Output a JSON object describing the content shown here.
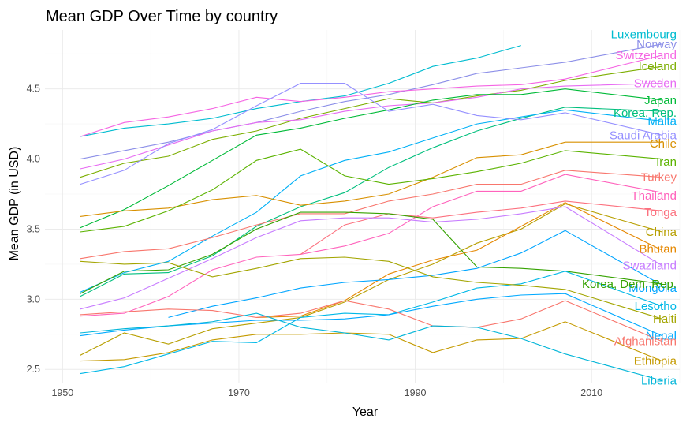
{
  "chart_data": {
    "type": "line",
    "title": "Mean GDP Over Time by country",
    "xlabel": "Year",
    "ylabel": "Mean GDP (in USD)",
    "xlim": [
      1948,
      2020
    ],
    "ylim": [
      2.4,
      4.92
    ],
    "x_ticks": [
      1950,
      1970,
      1990,
      2010
    ],
    "y_ticks": [
      2.5,
      3.0,
      3.5,
      4.0,
      4.5
    ],
    "grid": true,
    "legend": "labels at line ends",
    "x": [
      1952,
      1957,
      1962,
      1967,
      1972,
      1977,
      1982,
      1987,
      1992,
      1997,
      2002,
      2007,
      2018
    ],
    "series": [
      {
        "name": "Luxembourg",
        "color": "#00BCD0",
        "values": [
          4.16,
          4.22,
          4.25,
          4.29,
          4.36,
          4.41,
          4.45,
          4.54,
          4.66,
          4.72,
          4.81,
          null,
          4.89
        ],
        "label_y": 4.89
      },
      {
        "name": "Norway",
        "color": "#8C8FE8",
        "values": [
          4.0,
          4.06,
          4.12,
          4.2,
          4.26,
          4.34,
          4.41,
          4.46,
          4.53,
          4.61,
          4.65,
          4.69,
          4.82
        ],
        "label_y": 4.82
      },
      {
        "name": "Switzerland",
        "color": "#F564E3",
        "values": [
          4.16,
          4.26,
          4.3,
          4.36,
          4.44,
          4.41,
          4.44,
          4.48,
          4.5,
          4.52,
          4.53,
          4.57,
          4.74
        ],
        "label_y": 4.74
      },
      {
        "name": "Iceland",
        "color": "#7CAE00",
        "values": [
          3.87,
          3.97,
          4.02,
          4.14,
          4.2,
          4.29,
          4.36,
          4.43,
          4.4,
          4.45,
          4.49,
          4.56,
          4.66
        ],
        "label_y": 4.66
      },
      {
        "name": "Sweden",
        "color": "#E76BF3",
        "values": [
          3.93,
          4.0,
          4.1,
          4.2,
          4.26,
          4.28,
          4.34,
          4.38,
          4.4,
          4.44,
          4.5,
          4.52,
          4.54
        ],
        "label_y": 4.54
      },
      {
        "name": "Japan",
        "color": "#00BA38",
        "values": [
          3.51,
          3.64,
          3.81,
          3.99,
          4.17,
          4.22,
          4.29,
          4.35,
          4.42,
          4.46,
          4.46,
          4.5,
          4.42
        ],
        "label_y": 4.42
      },
      {
        "name": "Korea, Rep.",
        "color": "#00BF7D",
        "values": [
          3.02,
          3.18,
          3.19,
          3.31,
          3.52,
          3.66,
          3.76,
          3.94,
          4.08,
          4.2,
          4.29,
          4.37,
          4.34
        ],
        "label_y": 4.33
      },
      {
        "name": "Malta",
        "color": "#00B0F6",
        "values": [
          3.05,
          3.19,
          3.27,
          3.45,
          3.62,
          3.88,
          3.99,
          4.05,
          4.15,
          4.25,
          4.3,
          4.35,
          4.27
        ],
        "label_y": 4.27
      },
      {
        "name": "Saudi Arabia",
        "color": "#9590FF",
        "values": [
          3.82,
          3.92,
          4.11,
          4.21,
          4.38,
          4.54,
          4.54,
          4.34,
          4.39,
          4.31,
          4.28,
          4.33,
          4.17
        ],
        "label_y": 4.17
      },
      {
        "name": "Chile",
        "color": "#D89000",
        "values": [
          3.59,
          3.63,
          3.65,
          3.71,
          3.74,
          3.67,
          3.7,
          3.75,
          3.87,
          4.01,
          4.03,
          4.12,
          4.12
        ],
        "label_y": 4.11
      },
      {
        "name": "Iran",
        "color": "#5BB300",
        "values": [
          3.48,
          3.52,
          3.63,
          3.78,
          3.99,
          4.07,
          3.88,
          3.82,
          3.86,
          3.91,
          3.97,
          4.06,
          4.0
        ],
        "label_y": 3.98
      },
      {
        "name": "Turkey",
        "color": "#F8766D",
        "values": [
          3.29,
          3.34,
          3.36,
          3.44,
          3.53,
          3.61,
          3.61,
          3.7,
          3.75,
          3.82,
          3.82,
          3.92,
          3.87
        ],
        "label_y": 3.87
      },
      {
        "name": "Thailand",
        "color": "#FF62BC",
        "values": [
          2.88,
          2.9,
          3.02,
          3.21,
          3.3,
          3.32,
          3.38,
          3.47,
          3.66,
          3.77,
          3.77,
          3.89,
          3.76
        ],
        "label_y": 3.74
      },
      {
        "name": "Tonga",
        "color": "#FC717F",
        "values": [
          null,
          null,
          null,
          null,
          null,
          3.32,
          3.53,
          3.61,
          3.58,
          3.62,
          3.65,
          3.7,
          3.63
        ],
        "label_y": 3.62
      },
      {
        "name": "China",
        "color": "#B79F00",
        "values": [
          2.6,
          2.76,
          2.68,
          2.79,
          2.83,
          2.87,
          2.98,
          3.14,
          3.25,
          3.4,
          3.5,
          3.68,
          3.48
        ],
        "label_y": 3.48
      },
      {
        "name": "Bhutan",
        "color": "#E58700",
        "values": [
          null,
          null,
          null,
          null,
          2.87,
          2.88,
          2.99,
          3.18,
          3.28,
          3.35,
          3.52,
          3.69,
          3.35
        ],
        "label_y": 3.36
      },
      {
        "name": "Swaziland",
        "color": "#C77CFF",
        "values": [
          2.93,
          3.01,
          3.15,
          3.29,
          3.44,
          3.56,
          3.58,
          3.58,
          3.55,
          3.57,
          3.61,
          3.66,
          3.24
        ],
        "label_y": 3.24
      },
      {
        "name": "Mongolia",
        "color": "#00A5FF",
        "values": [
          null,
          null,
          2.87,
          2.95,
          3.01,
          3.08,
          3.12,
          3.14,
          3.17,
          3.22,
          3.33,
          3.49,
          3.1
        ],
        "label_y": 3.08
      },
      {
        "name": "Korea, Dem. Rep.",
        "color": "#35A200",
        "values": [
          3.04,
          3.2,
          3.21,
          3.32,
          3.5,
          3.62,
          3.62,
          3.61,
          3.57,
          3.23,
          3.22,
          3.2,
          3.11
        ],
        "label_y": 3.11
      },
      {
        "name": "Lesotho",
        "color": "#00B8E7",
        "values": [
          2.47,
          2.52,
          2.61,
          2.7,
          2.69,
          2.87,
          2.9,
          2.89,
          2.98,
          3.08,
          3.11,
          3.2,
          2.95
        ],
        "label_y": 2.95
      },
      {
        "name": "Haiti",
        "color": "#A3A500",
        "values": [
          3.27,
          3.25,
          3.26,
          3.16,
          3.22,
          3.29,
          3.3,
          3.27,
          3.16,
          3.12,
          3.1,
          3.07,
          2.86
        ],
        "label_y": 2.86
      },
      {
        "name": "Nepal",
        "color": "#00A9FF",
        "values": [
          2.74,
          2.78,
          2.81,
          2.83,
          2.85,
          2.85,
          2.86,
          2.89,
          2.95,
          3.0,
          3.03,
          3.04,
          2.74
        ],
        "label_y": 2.74
      },
      {
        "name": "Afghanistan",
        "color": "#F8766D",
        "values": [
          2.89,
          2.91,
          2.93,
          2.92,
          2.87,
          2.9,
          2.99,
          2.93,
          2.81,
          2.8,
          2.86,
          2.99,
          2.7
        ],
        "label_y": 2.7
      },
      {
        "name": "Ethiopia",
        "color": "#C49A00",
        "values": [
          2.56,
          2.57,
          2.62,
          2.71,
          2.75,
          2.75,
          2.76,
          2.75,
          2.62,
          2.71,
          2.72,
          2.84,
          2.56
        ],
        "label_y": 2.56
      },
      {
        "name": "Liberia",
        "color": "#00B5D8",
        "values": [
          2.76,
          2.79,
          2.81,
          2.84,
          2.9,
          2.8,
          2.76,
          2.71,
          2.81,
          2.8,
          2.72,
          2.61,
          2.42
        ],
        "label_y": 2.42
      }
    ]
  }
}
